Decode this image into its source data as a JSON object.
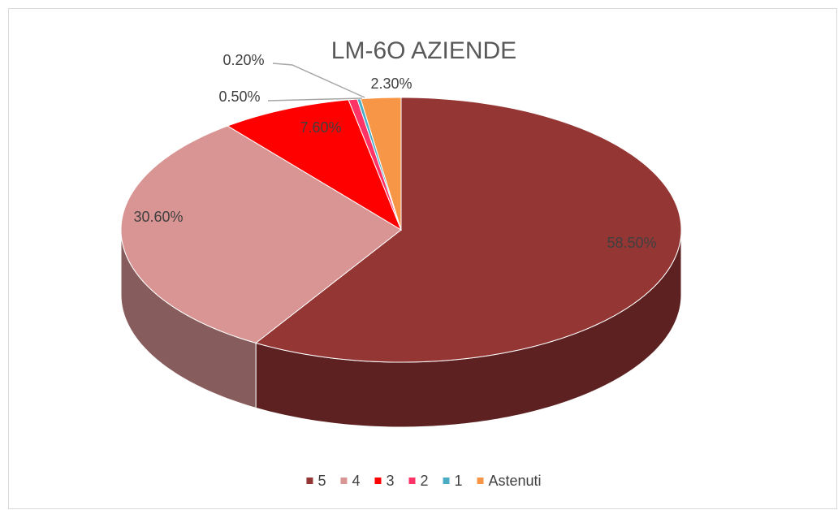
{
  "chart_data": {
    "type": "pie3d",
    "title": "LM-6O AZIENDE",
    "categories": [
      "5",
      "4",
      "3",
      "2",
      "1",
      "Astenuti"
    ],
    "values": [
      58.5,
      30.6,
      7.6,
      0.5,
      0.2,
      2.3
    ],
    "value_labels": [
      "58.50%",
      "30.60%",
      "7.60%",
      "0.50%",
      "0.20%",
      "2.30%"
    ],
    "colors": [
      "#943634",
      "#d99594",
      "#ff0000",
      "#ff3366",
      "#4bacc6",
      "#f79646"
    ],
    "legend": "bottom"
  }
}
